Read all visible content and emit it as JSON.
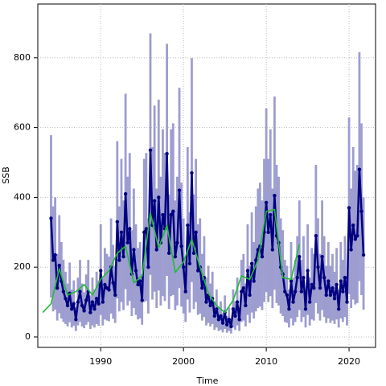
{
  "chart_data": {
    "type": "line",
    "xlabel": "Time",
    "ylabel": "SSB",
    "xlim": [
      1982.4,
      2023.2
    ],
    "ylim": [
      -30,
      954
    ],
    "xticks": [
      1990,
      2000,
      2010,
      2020
    ],
    "yticks": [
      0,
      200,
      400,
      600,
      800
    ],
    "grid": true,
    "band_color": "#9d9dd0",
    "series": [
      {
        "color": "#000080",
        "x": [
          1984,
          1984.25,
          1984.5,
          1984.75,
          1985,
          1985.25,
          1985.5,
          1985.75,
          1986,
          1986.25,
          1986.5,
          1986.75,
          1987,
          1987.25,
          1987.5,
          1987.75,
          1988,
          1988.25,
          1988.5,
          1988.75,
          1989,
          1989.25,
          1989.5,
          1989.75,
          1990,
          1990.25,
          1990.5,
          1990.75,
          1991,
          1991.25,
          1991.5,
          1991.75,
          1992,
          1992.25,
          1992.5,
          1992.75,
          1993,
          1993.25,
          1993.5,
          1993.75,
          1994,
          1994.25,
          1994.5,
          1994.75,
          1995,
          1995.25,
          1995.5,
          1995.75,
          1996,
          1996.25,
          1996.5,
          1996.75,
          1997,
          1997.25,
          1997.5,
          1997.75,
          1998,
          1998.25,
          1998.5,
          1998.75,
          1999,
          1999.25,
          1999.5,
          1999.75,
          2000,
          2000.25,
          2000.5,
          2000.75,
          2001,
          2001.25,
          2001.5,
          2001.75,
          2002,
          2002.25,
          2002.5,
          2002.75,
          2003,
          2003.25,
          2003.5,
          2003.75,
          2004,
          2004.25,
          2004.5,
          2004.75,
          2005,
          2005.25,
          2005.5,
          2005.75,
          2006,
          2006.25,
          2006.5,
          2006.75,
          2007,
          2007.25,
          2007.5,
          2007.75,
          2008,
          2008.25,
          2008.5,
          2008.75,
          2009,
          2009.25,
          2009.5,
          2009.75,
          2010,
          2010.25,
          2010.5,
          2010.75,
          2011,
          2011.25,
          2011.5,
          2011.75,
          2012,
          2012.25,
          2012.5,
          2012.75,
          2013,
          2013.25,
          2013.5,
          2013.75,
          2014,
          2014.25,
          2014.5,
          2014.75,
          2015,
          2015.25,
          2015.5,
          2015.75,
          2016,
          2016.25,
          2016.5,
          2016.75,
          2017,
          2017.25,
          2017.5,
          2017.75,
          2018,
          2018.25,
          2018.5,
          2018.75,
          2019,
          2019.25,
          2019.5,
          2019.75,
          2020,
          2020.25,
          2020.5,
          2020.75,
          2021,
          2021.25,
          2021.5,
          2021.75
        ],
        "values": [
          340,
          220,
          235,
          140,
          205,
          160,
          130,
          110,
          90,
          125,
          80,
          95,
          50,
          100,
          130,
          90,
          75,
          105,
          130,
          70,
          100,
          80,
          110,
          95,
          190,
          100,
          150,
          140,
          135,
          200,
          155,
          120,
          330,
          220,
          300,
          230,
          410,
          270,
          310,
          180,
          250,
          190,
          150,
          160,
          105,
          300,
          310,
          200,
          535,
          320,
          390,
          250,
          400,
          270,
          350,
          310,
          525,
          240,
          350,
          360,
          230,
          270,
          420,
          260,
          200,
          130,
          320,
          210,
          470,
          240,
          300,
          190,
          200,
          140,
          170,
          100,
          120,
          90,
          110,
          60,
          80,
          50,
          60,
          40,
          70,
          35,
          50,
          30,
          80,
          60,
          100,
          50,
          130,
          140,
          90,
          190,
          120,
          210,
          160,
          220,
          250,
          260,
          230,
          300,
          385,
          300,
          350,
          250,
          405,
          290,
          270,
          200,
          180,
          130,
          120,
          80,
          160,
          100,
          130,
          170,
          230,
          130,
          170,
          80,
          190,
          100,
          150,
          140,
          290,
          200,
          140,
          230,
          170,
          120,
          160,
          120,
          140,
          110,
          150,
          80,
          160,
          130,
          170,
          100,
          370,
          250,
          320,
          280,
          290,
          480,
          360,
          235
        ],
        "lower": [
          113,
          73,
          78,
          47,
          68,
          53,
          43,
          37,
          30,
          42,
          27,
          32,
          17,
          33,
          43,
          30,
          25,
          35,
          43,
          23,
          33,
          27,
          37,
          32,
          63,
          33,
          50,
          47,
          45,
          67,
          52,
          40,
          110,
          73,
          100,
          77,
          137,
          90,
          103,
          60,
          83,
          63,
          50,
          53,
          35,
          100,
          103,
          67,
          178,
          107,
          130,
          83,
          133,
          90,
          117,
          103,
          175,
          80,
          117,
          120,
          77,
          90,
          140,
          87,
          67,
          43,
          107,
          70,
          157,
          80,
          100,
          63,
          67,
          47,
          57,
          33,
          40,
          30,
          37,
          20,
          27,
          17,
          20,
          13,
          23,
          12,
          17,
          10,
          27,
          20,
          33,
          17,
          43,
          47,
          30,
          63,
          40,
          70,
          53,
          73,
          83,
          87,
          77,
          100,
          128,
          100,
          117,
          83,
          135,
          97,
          90,
          67,
          60,
          43,
          40,
          27,
          53,
          33,
          43,
          57,
          77,
          43,
          57,
          27,
          63,
          33,
          50,
          47,
          97,
          67,
          47,
          77,
          57,
          40,
          53,
          40,
          47,
          37,
          50,
          27,
          53,
          43,
          57,
          33,
          123,
          83,
          107,
          93,
          97,
          160,
          120,
          78
        ],
        "upper": [
          578,
          374,
          400,
          238,
          349,
          272,
          221,
          187,
          153,
          213,
          136,
          162,
          85,
          170,
          221,
          153,
          128,
          179,
          221,
          119,
          170,
          136,
          187,
          162,
          323,
          170,
          255,
          238,
          230,
          340,
          264,
          204,
          561,
          374,
          510,
          391,
          697,
          459,
          527,
          306,
          425,
          323,
          255,
          272,
          179,
          510,
          527,
          340,
          870,
          544,
          663,
          425,
          680,
          459,
          595,
          527,
          840,
          408,
          595,
          612,
          391,
          459,
          714,
          442,
          340,
          221,
          544,
          357,
          799,
          408,
          510,
          323,
          340,
          238,
          289,
          170,
          204,
          153,
          187,
          102,
          136,
          85,
          102,
          68,
          119,
          60,
          85,
          51,
          136,
          102,
          170,
          85,
          221,
          238,
          153,
          323,
          204,
          357,
          272,
          374,
          425,
          442,
          391,
          510,
          655,
          510,
          595,
          425,
          689,
          493,
          459,
          340,
          306,
          221,
          204,
          136,
          272,
          170,
          221,
          289,
          391,
          221,
          289,
          136,
          323,
          170,
          255,
          238,
          493,
          340,
          238,
          391,
          289,
          204,
          272,
          204,
          238,
          187,
          255,
          136,
          272,
          221,
          289,
          170,
          629,
          425,
          544,
          476,
          493,
          816,
          612,
          400
        ]
      },
      {
        "color": "#22bb33",
        "x": [
          1983,
          1984,
          1985,
          1986,
          1987,
          1988,
          1989,
          1990,
          1991,
          1992,
          1993,
          1994,
          1995,
          1996,
          1997,
          1998,
          1999,
          2000,
          2001,
          2002,
          2003,
          2004,
          2005,
          2006,
          2007,
          2008,
          2009,
          2010,
          2011,
          2012,
          2013,
          2014
        ],
        "values": [
          70,
          95,
          195,
          120,
          130,
          150,
          120,
          165,
          190,
          240,
          260,
          155,
          175,
          355,
          255,
          320,
          185,
          215,
          280,
          200,
          125,
          90,
          70,
          105,
          175,
          165,
          220,
          360,
          365,
          170,
          165,
          265
        ]
      }
    ]
  }
}
